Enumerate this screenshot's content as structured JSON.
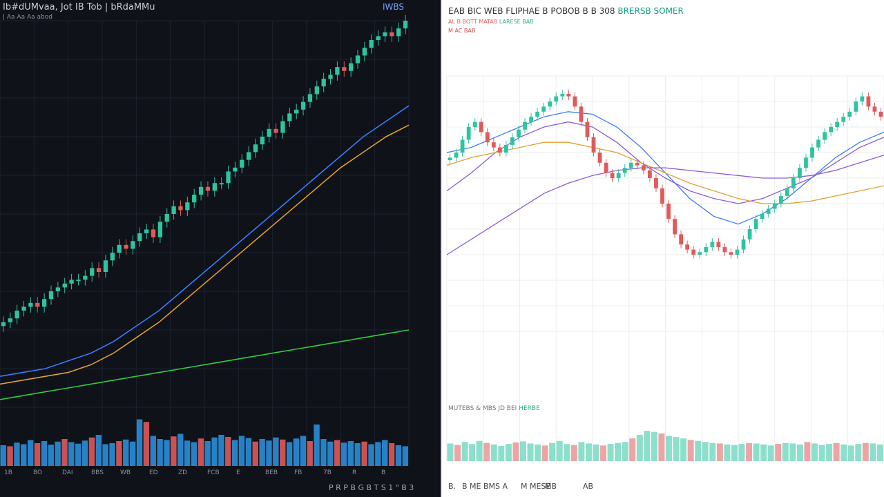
{
  "left_panel": {
    "title": "Ib#dUMvaa, Jot IB Tob | bRdaMMu",
    "subtitle": "| Aa Aa Aa abod",
    "badge": "IWBS",
    "bottom_labels": [
      "1B",
      "BO",
      "DAI",
      "ΒBS",
      "WB",
      "ED",
      "ZD",
      "FCB",
      "E",
      "BEB",
      "FB",
      "7B",
      "R",
      "B"
    ],
    "bottom_right_text": "P R P B G B T S 1 \" B 3"
  },
  "right_panel": {
    "title": "EAB BIC WEB FLIPHAE B POBOB B B 308",
    "title_highlight": "BRERSB SOMER",
    "subtitle_1": "AL B BOTT MATAB",
    "subtitle_1_highlight": "LARESE BAB",
    "subtitle_2": "M AC BAB",
    "volume_label": "MUTEBS & MBS JD BEI",
    "volume_label_highlight": "HERBE",
    "bottom_labels": [
      "B.",
      "B ME BMS A",
      "M MESE",
      "MB",
      "AB"
    ]
  },
  "colors": {
    "up": "#2ec4a0",
    "down": "#e05a5a",
    "ma_blue": "#3d7bff",
    "ma_orange": "#e0a030",
    "ma_green": "#2ecc40",
    "ma_purple": "#8a5cd8",
    "volume_blue": "#2b8ed8",
    "area_lightblue": "#a0d4f0"
  },
  "chart_data": [
    {
      "type": "line",
      "title": "",
      "price_series": [
        22,
        23,
        25,
        26,
        27,
        26,
        28,
        30,
        31,
        32,
        33,
        33,
        34,
        36,
        35,
        38,
        40,
        42,
        41,
        43,
        45,
        46,
        44,
        48,
        50,
        52,
        51,
        53,
        55,
        57,
        56,
        58,
        58,
        61,
        62,
        64,
        66,
        68,
        70,
        72,
        71,
        74,
        76,
        77,
        79,
        81,
        83,
        85,
        86,
        88,
        87,
        89,
        91,
        93,
        95,
        96,
        97,
        96,
        98,
        100
      ],
      "series": [
        {
          "color": "blue",
          "values": [
            8,
            9,
            10,
            12,
            14,
            17,
            21,
            25,
            30,
            35,
            40,
            45,
            50,
            55,
            60,
            65,
            70,
            74,
            78
          ]
        },
        {
          "color": "orange",
          "values": [
            6,
            7,
            8,
            9,
            11,
            14,
            18,
            22,
            27,
            32,
            37,
            42,
            47,
            52,
            57,
            62,
            66,
            70,
            73
          ]
        },
        {
          "color": "green",
          "values": [
            2,
            3,
            4,
            5,
            6,
            7,
            8,
            9,
            10,
            11,
            12,
            13,
            14,
            15,
            16,
            17,
            18,
            19,
            20
          ]
        }
      ],
      "volume": [
        40,
        38,
        45,
        42,
        50,
        44,
        48,
        41,
        47,
        52,
        46,
        43,
        49,
        55,
        60,
        42,
        44,
        48,
        51,
        47,
        90,
        85,
        58,
        52,
        50,
        57,
        62,
        49,
        46,
        53,
        48,
        55,
        60,
        56,
        50,
        58,
        54,
        47,
        52,
        49,
        55,
        51,
        46,
        53,
        58,
        48,
        80,
        52,
        47,
        50,
        45,
        48,
        44,
        47,
        42,
        46,
        50,
        44,
        40,
        38
      ],
      "ylim": [
        0,
        100
      ]
    },
    {
      "type": "line",
      "title": "",
      "price_series": [
        68,
        70,
        75,
        80,
        82,
        78,
        74,
        72,
        70,
        73,
        76,
        79,
        82,
        84,
        86,
        88,
        90,
        92,
        93,
        92,
        88,
        82,
        76,
        70,
        66,
        62,
        60,
        62,
        64,
        66,
        65,
        63,
        60,
        56,
        50,
        44,
        38,
        34,
        32,
        30,
        31,
        33,
        35,
        33,
        31,
        30,
        32,
        36,
        40,
        44,
        46,
        48,
        50,
        53,
        56,
        60,
        64,
        68,
        72,
        75,
        78,
        80,
        82,
        84,
        86,
        90,
        92,
        88,
        86,
        84
      ],
      "series": [
        {
          "color": "blue",
          "values": [
            70,
            72,
            76,
            80,
            84,
            86,
            85,
            80,
            72,
            62,
            52,
            45,
            42,
            46,
            52,
            60,
            68,
            74,
            78
          ]
        },
        {
          "color": "purple",
          "values": [
            55,
            62,
            70,
            76,
            80,
            82,
            80,
            74,
            66,
            60,
            55,
            52,
            50,
            52,
            56,
            60,
            66,
            72,
            76
          ]
        },
        {
          "color": "orange",
          "values": [
            65,
            68,
            70,
            72,
            74,
            74,
            72,
            70,
            66,
            62,
            58,
            55,
            52,
            50,
            50,
            51,
            53,
            55,
            57
          ]
        },
        {
          "color": "purple",
          "values": [
            30,
            36,
            42,
            48,
            54,
            58,
            61,
            63,
            64,
            64,
            63,
            62,
            61,
            60,
            60,
            61,
            63,
            66,
            69
          ]
        }
      ],
      "volume": [
        35,
        32,
        38,
        34,
        40,
        36,
        33,
        30,
        34,
        37,
        39,
        35,
        33,
        31,
        36,
        40,
        34,
        32,
        38,
        35,
        33,
        31,
        34,
        36,
        38,
        45,
        52,
        60,
        58,
        55,
        50,
        48,
        45,
        42,
        40,
        38,
        36,
        35,
        33,
        32,
        34,
        36,
        35,
        33,
        31,
        34,
        36,
        35,
        33,
        38,
        35,
        32,
        34,
        36,
        33,
        31,
        34,
        36,
        35,
        33
      ],
      "ylim": [
        0,
        100
      ]
    }
  ]
}
